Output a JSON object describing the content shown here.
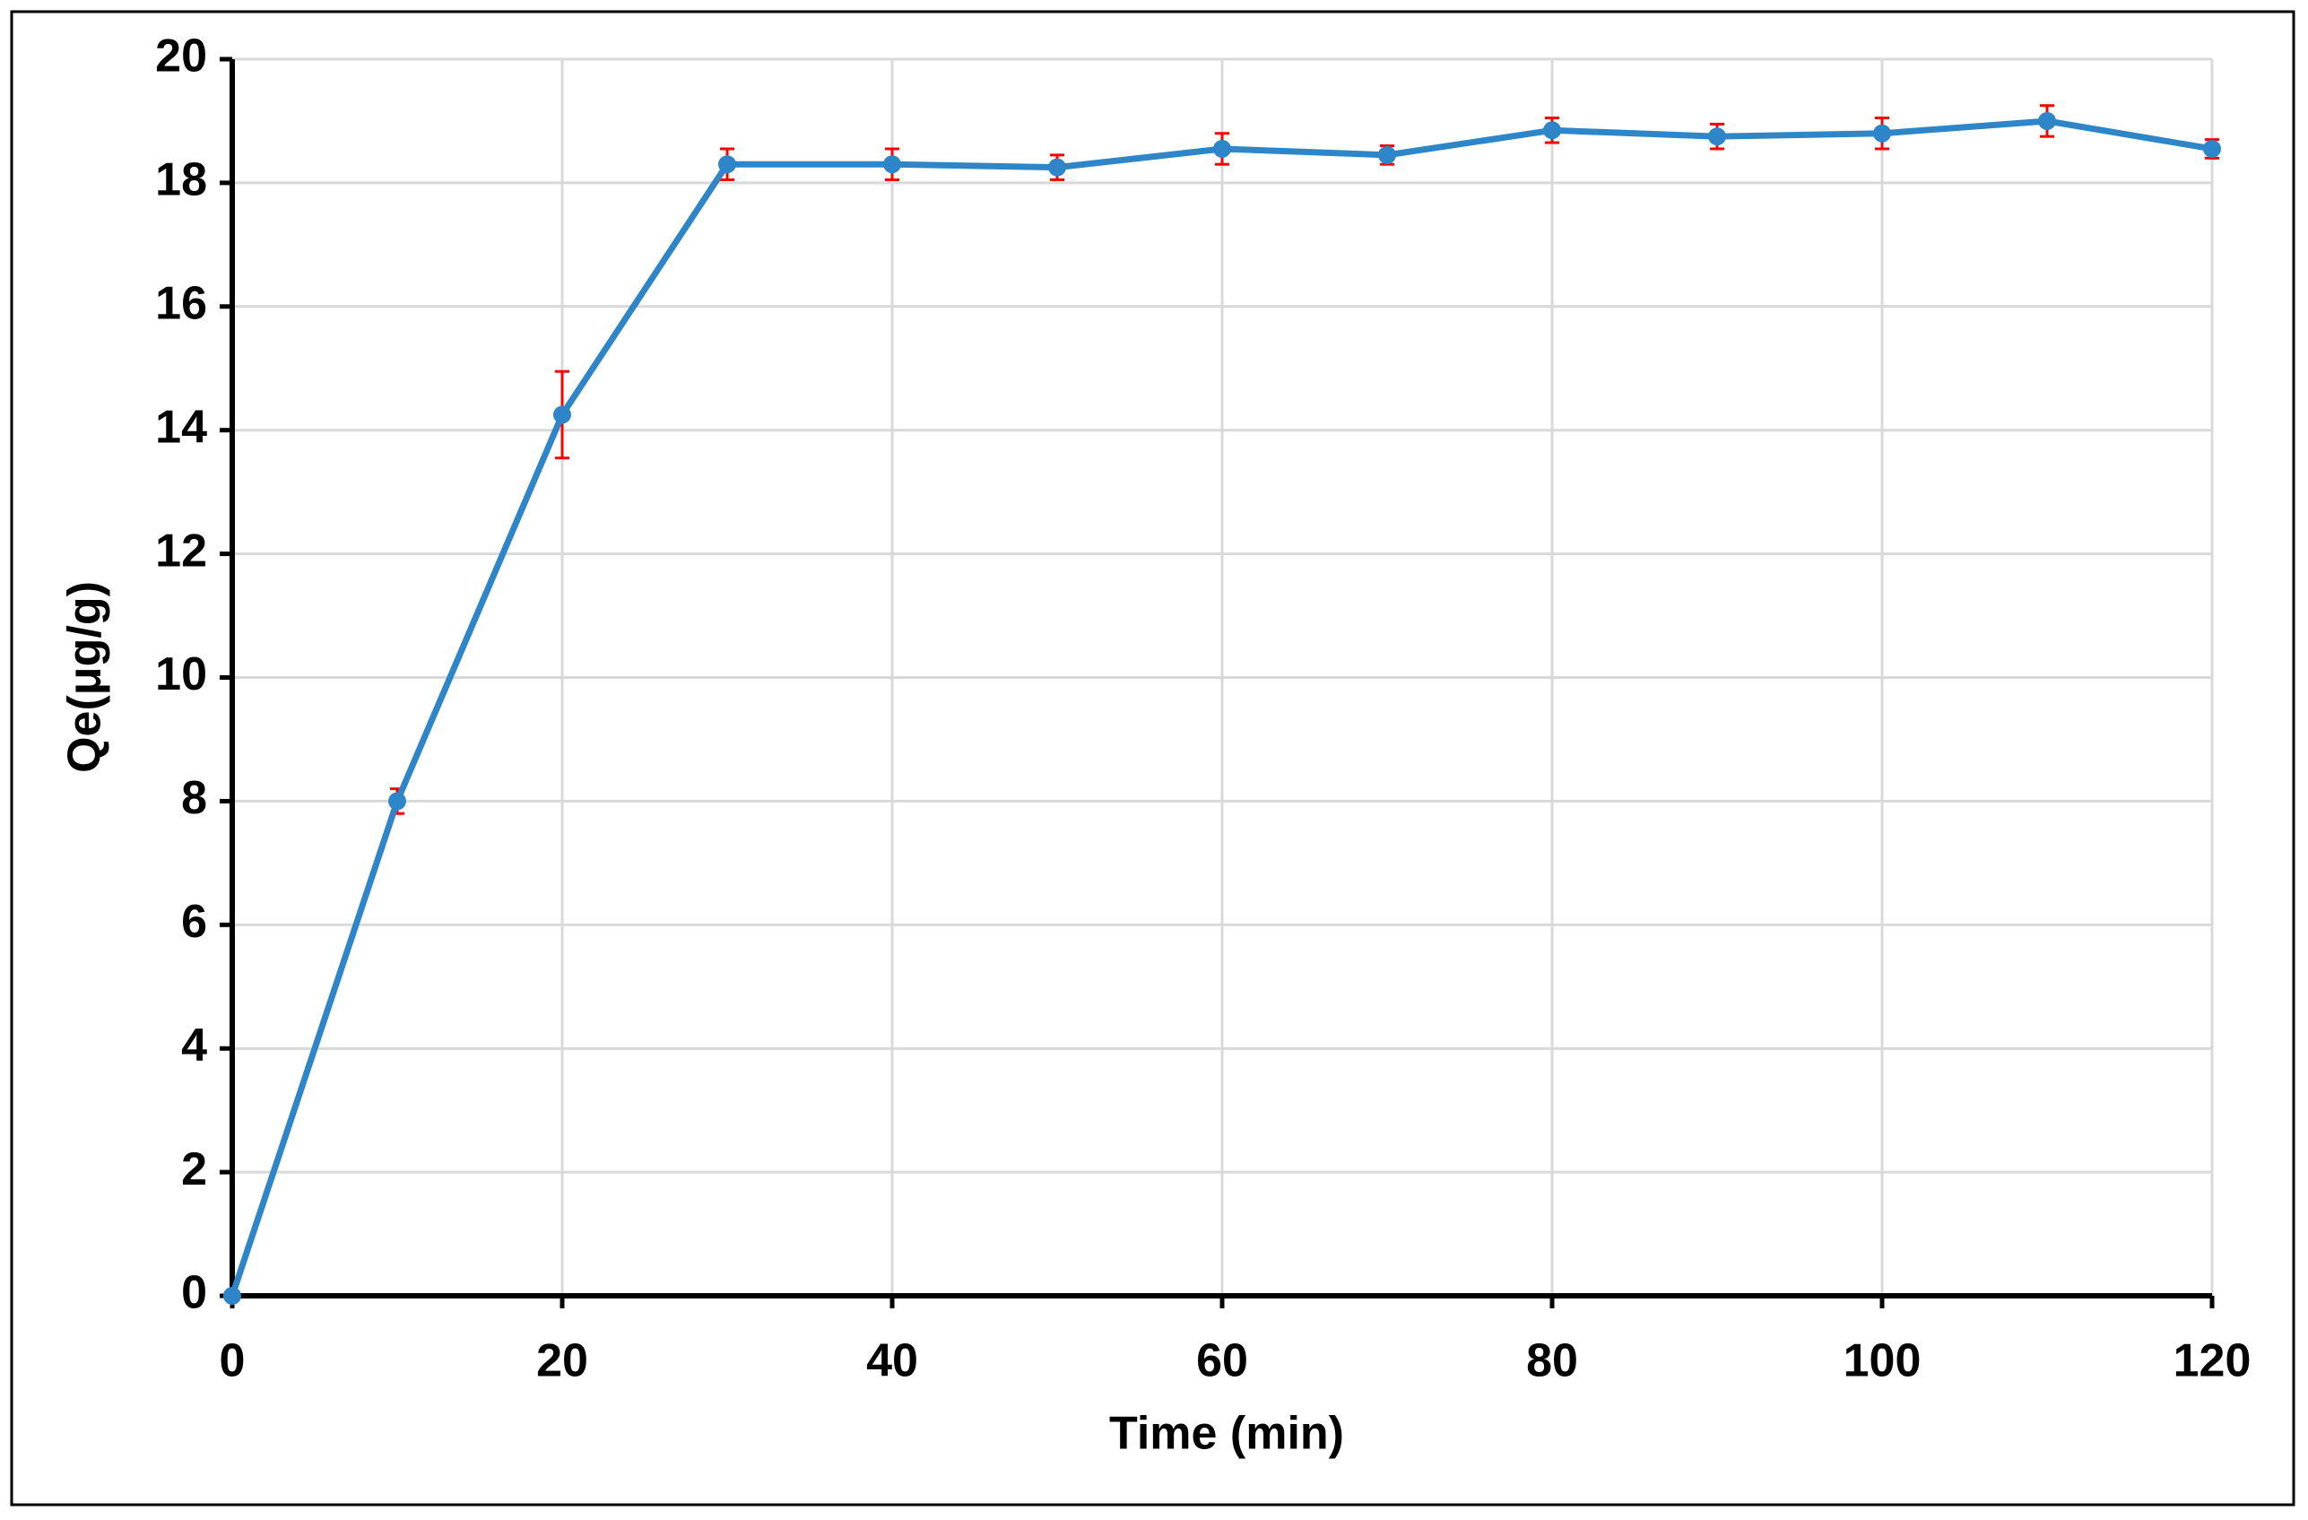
{
  "chart_data": {
    "type": "line",
    "xlabel": "Time (min)",
    "ylabel": "Qe(μg/g)",
    "x": [
      0,
      10,
      20,
      30,
      40,
      50,
      60,
      70,
      80,
      90,
      100,
      110,
      120
    ],
    "series": [
      {
        "color": "#2e86c8",
        "error_color": "#ff0000",
        "values": [
          0,
          8.0,
          14.25,
          18.3,
          18.3,
          18.25,
          18.55,
          18.45,
          18.85,
          18.75,
          18.8,
          19.0,
          18.55
        ],
        "errors": [
          0,
          0.2,
          0.7,
          0.25,
          0.25,
          0.2,
          0.25,
          0.15,
          0.2,
          0.2,
          0.25,
          0.25,
          0.15
        ]
      }
    ],
    "xlim": [
      0,
      120
    ],
    "xticks": [
      0,
      20,
      40,
      60,
      80,
      100,
      120
    ],
    "ylim": [
      0,
      20
    ],
    "yticks": [
      0,
      2,
      4,
      6,
      8,
      10,
      12,
      14,
      16,
      18,
      20
    ],
    "grid": true
  }
}
